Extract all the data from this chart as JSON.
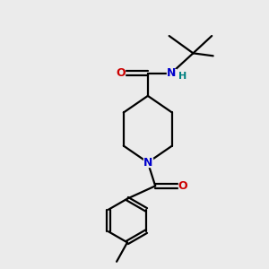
{
  "bg_color": "#ebebeb",
  "bond_color": "#000000",
  "N_color": "#0000cc",
  "O_color": "#cc0000",
  "H_color": "#008080",
  "line_width": 1.6,
  "figsize": [
    3.0,
    3.0
  ],
  "dpi": 100,
  "xlim": [
    0,
    10
  ],
  "ylim": [
    0,
    10
  ]
}
